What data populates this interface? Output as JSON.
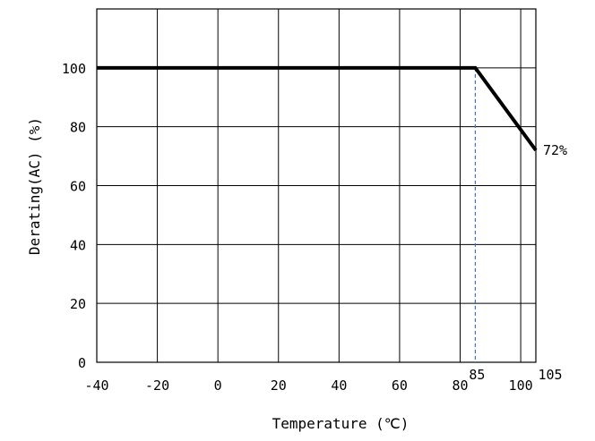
{
  "chart_data": {
    "type": "line",
    "xlabel": "Temperature (℃)",
    "ylabel": "Derating(AC) (%)",
    "xlim": [
      -40,
      105
    ],
    "ylim": [
      0,
      120
    ],
    "x_ticks": [
      {
        "value": -40,
        "label": "-40"
      },
      {
        "value": -20,
        "label": "-20"
      },
      {
        "value": 0,
        "label": "0"
      },
      {
        "value": 20,
        "label": "20"
      },
      {
        "value": 40,
        "label": "40"
      },
      {
        "value": 60,
        "label": "60"
      },
      {
        "value": 80,
        "label": "80"
      },
      {
        "value": 100,
        "label": "100"
      }
    ],
    "y_ticks": [
      {
        "value": 0,
        "label": "0"
      },
      {
        "value": 20,
        "label": "20"
      },
      {
        "value": 40,
        "label": "40"
      },
      {
        "value": 60,
        "label": "60"
      },
      {
        "value": 80,
        "label": "80"
      },
      {
        "value": 100,
        "label": "100"
      }
    ],
    "grid": true,
    "series": [
      {
        "x": [
          -40,
          85,
          105
        ],
        "y": [
          100,
          100,
          72
        ]
      }
    ],
    "annotations": [
      {
        "text": "72%",
        "x": 105,
        "y": 72
      },
      {
        "text": "85",
        "x": 85,
        "y": 0,
        "guideline": "dashed-vertical"
      },
      {
        "text": "105",
        "x": 105,
        "y": 0
      }
    ],
    "colors": {
      "line": "#000000",
      "grid": "#000000",
      "guideline": "#3b6fd6"
    }
  }
}
